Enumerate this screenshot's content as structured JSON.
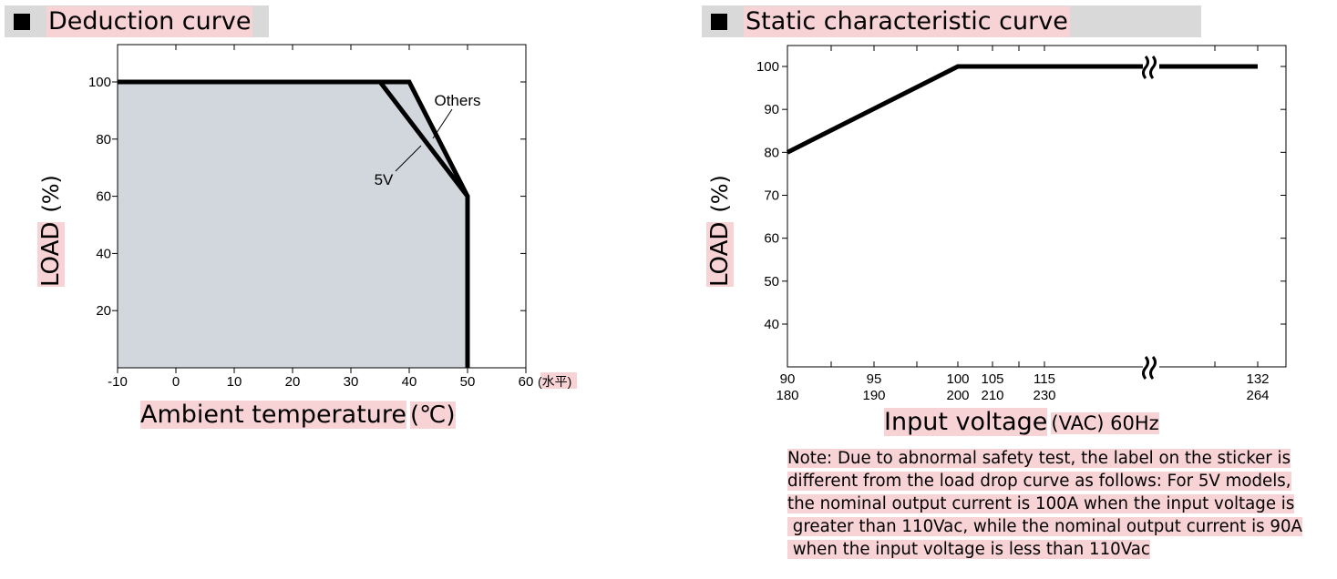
{
  "header_left": {
    "title": "Deduction curve"
  },
  "header_right": {
    "title": "Static characteristic curve"
  },
  "chart_data": [
    {
      "type": "line",
      "title": "Deduction curve",
      "xlabel": "Ambient temperature",
      "xlabel_unit": "(℃)",
      "ylabel": "LOAD",
      "ylabel_unit": "(%)",
      "xlim": [
        -10,
        60
      ],
      "ylim": [
        0,
        112
      ],
      "x_ticks": [
        -10,
        0,
        10,
        20,
        30,
        40,
        50,
        60
      ],
      "x_tick_labels": [
        "-10",
        "0",
        "10",
        "20",
        "30",
        "40",
        "50",
        "60"
      ],
      "x_tick_suffix": "(水平)",
      "y_ticks": [
        20,
        40,
        60,
        80,
        100
      ],
      "y_tick_labels": [
        "20",
        "40",
        "60",
        "80",
        "100"
      ],
      "area_fill": "#d2d7dd",
      "series": [
        {
          "name": "Others",
          "x": [
            -10,
            40,
            50,
            50
          ],
          "y": [
            100,
            100,
            60,
            0
          ]
        },
        {
          "name": "5V",
          "x": [
            -10,
            35,
            50,
            50
          ],
          "y": [
            100,
            100,
            60,
            0
          ]
        }
      ],
      "annotations": [
        "Others",
        "5V"
      ]
    },
    {
      "type": "line",
      "title": "Static characteristic curve",
      "xlabel": "Input voltage",
      "xlabel_unit": "(VAC) 60Hz",
      "ylabel": "LOAD",
      "ylabel_unit": "(%)",
      "x_break": true,
      "y_break": true,
      "x_tick_labels": [
        {
          "top": "90",
          "bottom": "180"
        },
        {
          "top": "95",
          "bottom": "190"
        },
        {
          "top": "100",
          "bottom": "200"
        },
        {
          "top": "105",
          "bottom": "210"
        },
        {
          "top": "115",
          "bottom": "230"
        },
        {
          "top": "132",
          "bottom": "264"
        }
      ],
      "y_ticks": [
        40,
        50,
        60,
        70,
        80,
        90,
        100
      ],
      "y_tick_labels": [
        "40",
        "50",
        "60",
        "70",
        "80",
        "90",
        "100"
      ],
      "ylim": [
        33,
        105
      ],
      "series": [
        {
          "x": [
            90,
            100,
            132
          ],
          "y": [
            80,
            100,
            100
          ]
        }
      ]
    }
  ],
  "note": {
    "lines": [
      "Note: Due to abnormal safety test, the label on the sticker is",
      "different from the load drop curve as follows: For 5V models,",
      "the nominal output current is 100A when the input voltage is",
      " greater than 110Vac, while the nominal output current is 90A",
      " when the input voltage is less than 110Vac"
    ]
  }
}
